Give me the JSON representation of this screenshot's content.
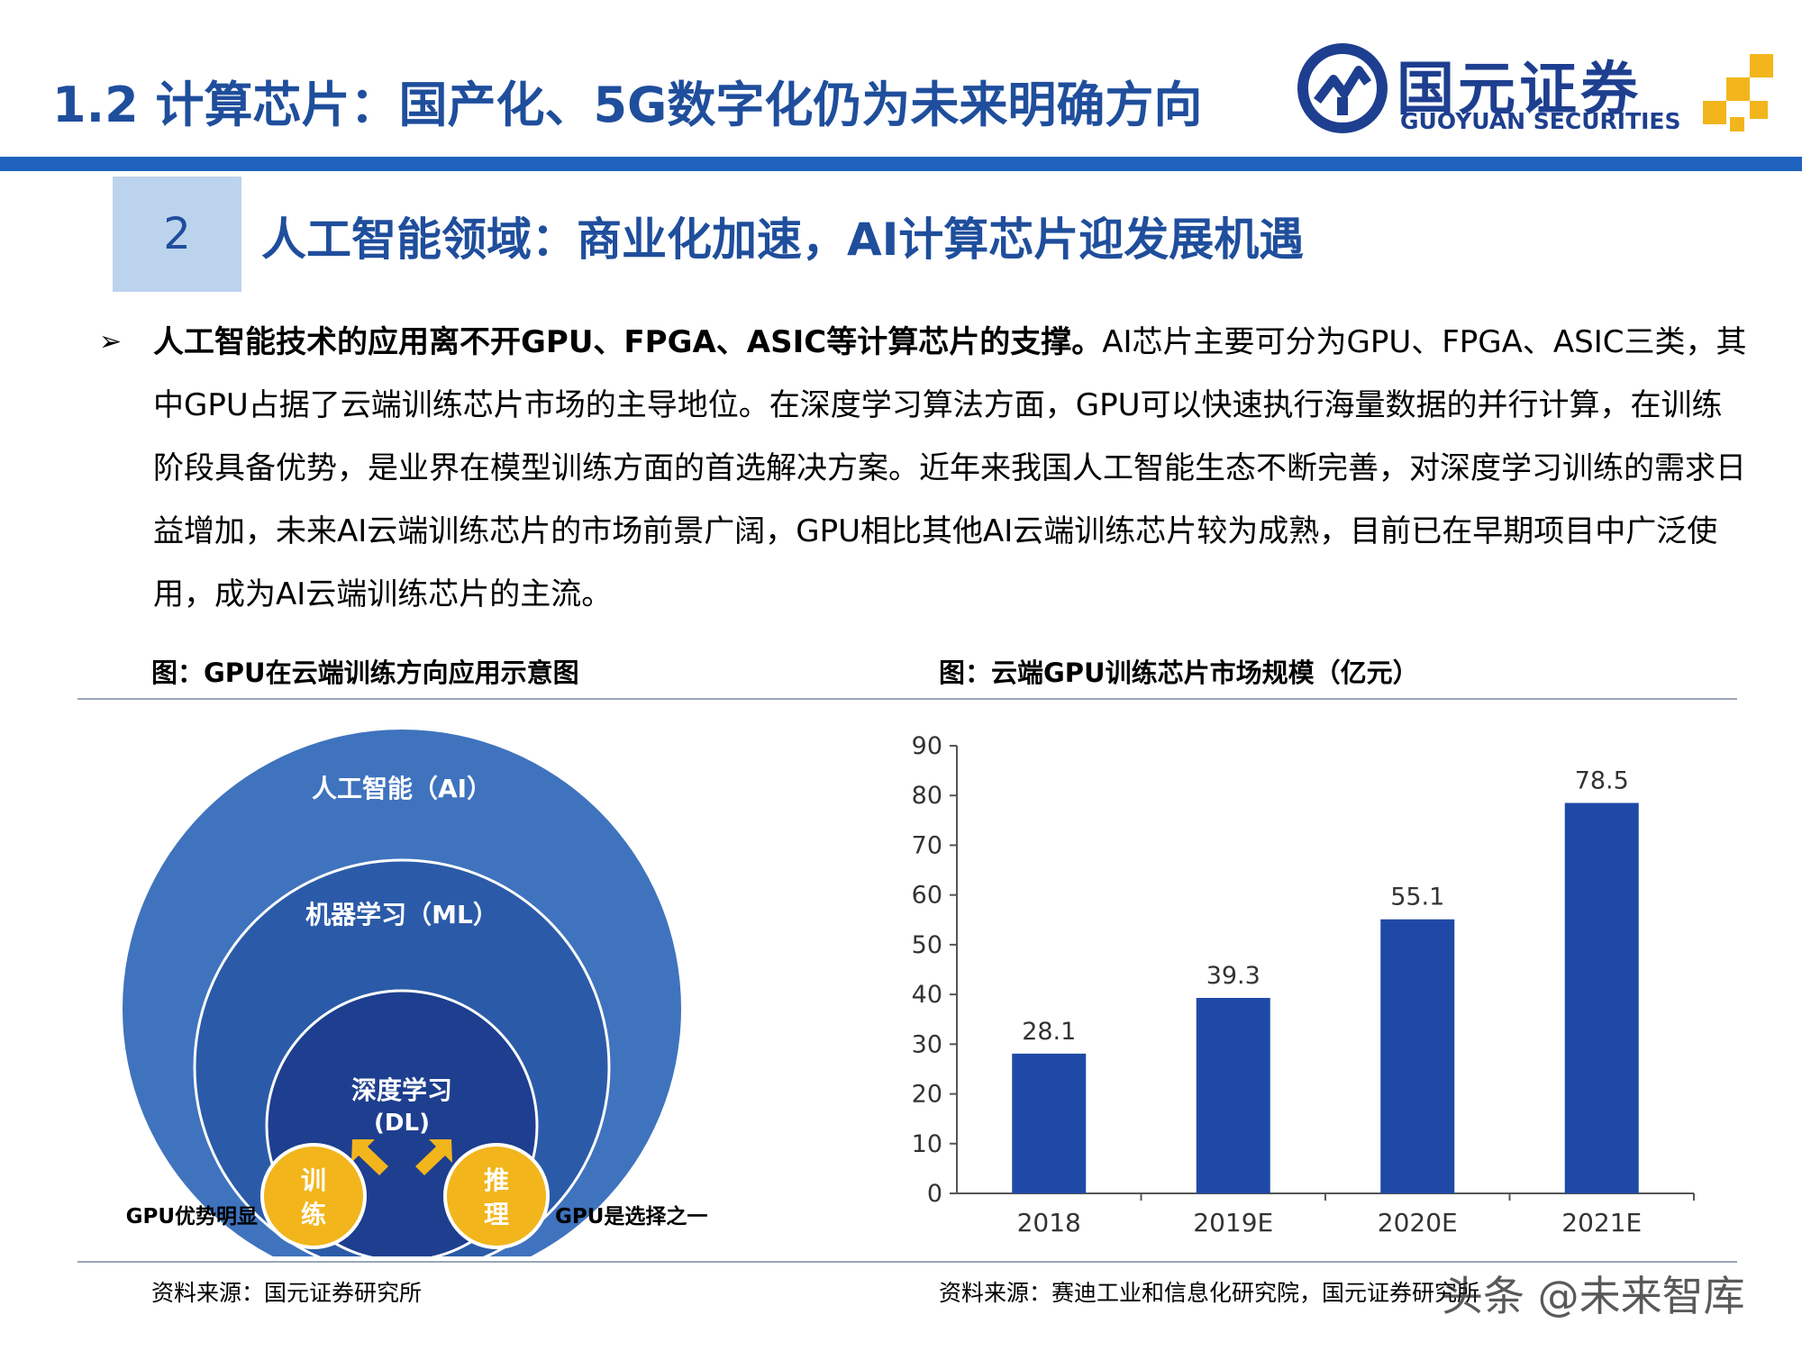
{
  "header": {
    "title": "1.2 计算芯片：国产化、5G数字化仍为未来明确方向",
    "logo_cn": "国元证券",
    "logo_en": "GUOYUAN SECURITIES",
    "brand_color": "#1f63bf"
  },
  "section": {
    "number": "2",
    "title": "人工智能领域：商业化加速，AI计算芯片迎发展机遇"
  },
  "body": {
    "bullet": "➢",
    "lead_bold": "人工智能技术的应用离不开GPU、FPGA、ASIC等计算芯片的支撑。",
    "text": "AI芯片主要可分为GPU、FPGA、ASIC三类，其中GPU占据了云端训练芯片市场的主导地位。在深度学习算法方面，GPU可以快速执行海量数据的并行计算，在训练阶段具备优势，是业界在模型训练方面的首选解决方案。近年来我国人工智能生态不断完善，对深度学习训练的需求日益增加，未来AI云端训练芯片的市场前景广阔，GPU相比其他AI云端训练芯片较为成熟，目前已在早期项目中广泛使用，成为AI云端训练芯片的主流。"
  },
  "figure_left": {
    "title": "图：GPU在云端训练方向应用示意图",
    "ai": "人工智能（AI）",
    "ml": "机器学习（ML）",
    "dl_line1": "深度学习",
    "dl_line2": "(DL)",
    "train_1": "训",
    "train_2": "练",
    "infer_1": "推",
    "infer_2": "理",
    "left_note": "GPU优势明显",
    "right_note": "GPU是选择之一",
    "source": "资料来源：国元证券研究所"
  },
  "figure_right": {
    "title": "图：云端GPU训练芯片市场规模（亿元）",
    "source": "资料来源：赛迪工业和信息化研究院，国元证券研究所"
  },
  "chart_data": {
    "type": "bar",
    "title": "",
    "xlabel": "",
    "ylabel": "",
    "categories": [
      "2018",
      "2019E",
      "2020E",
      "2021E"
    ],
    "values": [
      28.1,
      39.3,
      55.1,
      78.5
    ],
    "ylim": [
      0,
      90
    ],
    "yticks": [
      0,
      10,
      20,
      30,
      40,
      50,
      60,
      70,
      80,
      90
    ],
    "bar_color": "#1f49a6",
    "grid": false
  },
  "watermark": "头条 @未来智库"
}
